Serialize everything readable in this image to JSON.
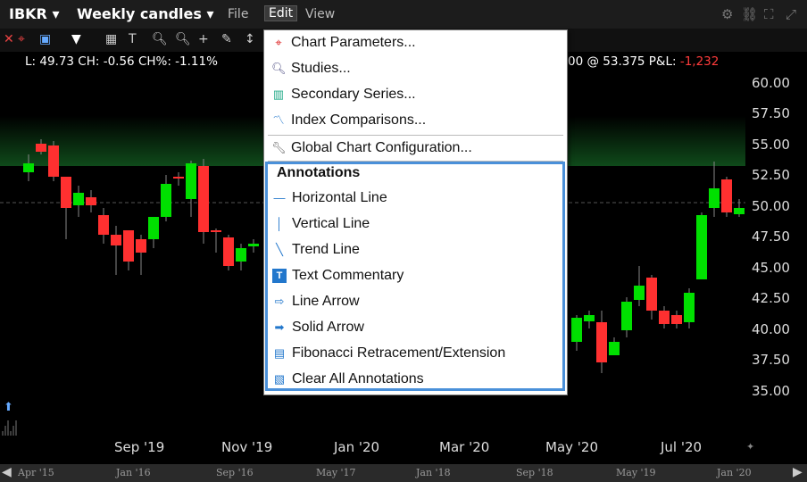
{
  "header": {
    "symbol": "IBKR ▾",
    "timeframe": "Weekly candles ▾",
    "menus": [
      "File",
      "Edit",
      "View"
    ]
  },
  "legend": {
    "left": "L: 49.73 CH: -0.56 CH%: -1.11%",
    "right_prefix": "00 @ 53.375 P&L: ",
    "pnl": "-1,232"
  },
  "y_axis": [
    "60.00",
    "57.50",
    "55.00",
    "52.50",
    "50.00",
    "47.50",
    "45.00",
    "42.50",
    "40.00",
    "37.50",
    "35.00"
  ],
  "x_axis": [
    "Sep '19",
    "Nov '19",
    "Jan '20",
    "Mar '20",
    "May '20",
    "Jul '20"
  ],
  "navigator": [
    "Apr '15",
    "Jan '16",
    "Sep '16",
    "May '17",
    "Jan '18",
    "Sep '18",
    "May '19",
    "Jan '20"
  ],
  "menu": {
    "items": [
      {
        "label": "Chart Parameters...",
        "icon": "target-icon"
      },
      {
        "label": "Studies...",
        "icon": "magnifier-icon"
      },
      {
        "label": "Secondary Series...",
        "icon": "series-icon"
      },
      {
        "label": "Index Comparisons...",
        "icon": "index-icon"
      },
      {
        "label": "Global Chart Configuration...",
        "icon": "wrench-icon"
      }
    ],
    "annotations_header": "Annotations",
    "annotations": [
      {
        "label": "Horizontal Line",
        "icon": "hline-icon"
      },
      {
        "label": "Vertical Line",
        "icon": "vline-icon"
      },
      {
        "label": "Trend Line",
        "icon": "trendline-icon"
      },
      {
        "label": "Text Commentary",
        "icon": "text-icon"
      },
      {
        "label": "Line Arrow",
        "icon": "line-arrow-icon"
      },
      {
        "label": "Solid Arrow",
        "icon": "solid-arrow-icon"
      },
      {
        "label": "Fibonacci Retracement/Extension",
        "icon": "fibonacci-icon"
      },
      {
        "label": "Clear All Annotations",
        "icon": "clear-icon"
      }
    ]
  },
  "colors": {
    "up": "#00e000",
    "down": "#ff3030",
    "menu_border": "#4a90d9"
  }
}
